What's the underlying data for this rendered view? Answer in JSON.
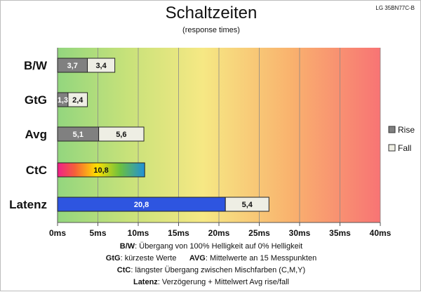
{
  "model": "LG 35BN77C-B",
  "chart_data": {
    "type": "bar",
    "orientation": "horizontal",
    "stacked": true,
    "title": "Schaltzeiten",
    "subtitle": "(response times)",
    "categories": [
      "B/W",
      "GtG",
      "Avg",
      "CtC",
      "Latenz"
    ],
    "series": [
      {
        "name": "Rise",
        "color": "#808080",
        "values": [
          3.7,
          1.3,
          5.1,
          null,
          null
        ]
      },
      {
        "name": "Fall",
        "color": "#eeeee4",
        "values": [
          3.4,
          2.4,
          5.6,
          null,
          5.4
        ]
      }
    ],
    "ctc": {
      "value": 10.8,
      "label": "10,8"
    },
    "latenz_delay": {
      "value": 20.8,
      "label": "20,8",
      "color": "#2e55e0"
    },
    "rise_labels": [
      "3,7",
      "1,3",
      "5,1"
    ],
    "fall_labels": [
      "3,4",
      "2,4",
      "5,6",
      "5,4"
    ],
    "xlim": [
      0,
      40
    ],
    "xticks": [
      0,
      5,
      10,
      15,
      20,
      25,
      30,
      35,
      40
    ],
    "xtick_labels": [
      "0ms",
      "5ms",
      "10ms",
      "15ms",
      "20ms",
      "25ms",
      "30ms",
      "35ms",
      "40ms"
    ],
    "grid": true,
    "legend_position": "right",
    "background": "green-to-red gradient"
  },
  "notes": [
    {
      "bold": "B/W",
      "text": ":  Übergang von 100% Helligkeit auf 0% Helligkeit"
    },
    {
      "bold": "GtG",
      "text": ": kürzeste  Werte",
      "bold2": "AVG",
      "text2": ": Mittelwerte  an 15 Messpunkten"
    },
    {
      "bold": "CtC",
      "text": ": längster Übergang  zwischen Mischfarben (C,M,Y)"
    },
    {
      "bold": "Latenz",
      "text": ": Verzögerung  + Mittelwert Avg rise/fall"
    }
  ]
}
